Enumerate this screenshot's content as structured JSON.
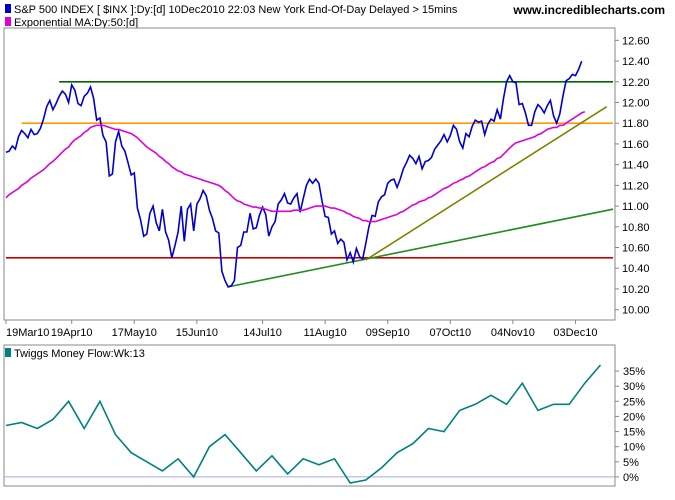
{
  "header": {
    "title": "S&P 500 INDEX [ $INX ]:Dy:[d]  10Dec2010 22:03 New York End-Of-Day Delayed > 15mins",
    "ma_label": "Exponential MA:Dy:50:[d]",
    "site": "www.incrediblecharts.com"
  },
  "colors": {
    "price": "#0000cc",
    "ma": "#dd00dd",
    "money_flow": "#008080",
    "red_line": "#cc0000",
    "orange_line": "#ff9900",
    "green_line": "#006600",
    "olive_line": "#808000",
    "trend_green": "#228b22",
    "zero_line": "#aaaadd"
  },
  "chart_data": [
    {
      "type": "line",
      "title": "S&P 500 INDEX [ $INX ]:Dy:[d]  10Dec2010 22:03 New York End-Of-Day Delayed > 15mins",
      "scale_factor_note": "",
      "x_tick_labels": [
        "19Mar10",
        "19Apr10",
        "17May10",
        "15Jun10",
        "14Jul10",
        "11Aug10",
        "09Sep10",
        "07Oct10",
        "04Nov10",
        "03Dec10"
      ],
      "x_tick_index": [
        0,
        21,
        41,
        61,
        82,
        102,
        122,
        142,
        162,
        182
      ],
      "y_tick_labels": [
        "10.00",
        "10.20",
        "10.40",
        "10.60",
        "10.80",
        "11.00",
        "11.20",
        "11.40",
        "11.60",
        "11.80",
        "12.00",
        "12.20",
        "12.40",
        "12.60"
      ],
      "ylim": [
        9.9,
        12.7
      ],
      "xlim": [
        0,
        194
      ],
      "grid": false,
      "series": [
        {
          "name": "S&P 500 INDEX [ $INX ]",
          "values": [
            11.52,
            11.53,
            11.58,
            11.55,
            11.67,
            11.73,
            11.7,
            11.66,
            11.74,
            11.69,
            11.7,
            11.75,
            11.84,
            11.96,
            12.02,
            11.93,
            11.99,
            12.06,
            12.11,
            12.08,
            12.0,
            12.17,
            12.12,
            11.99,
            11.97,
            12.06,
            12.09,
            12.15,
            12.04,
            11.83,
            11.85,
            11.68,
            11.62,
            11.29,
            11.31,
            11.62,
            11.72,
            11.58,
            11.53,
            11.42,
            11.3,
            11.32,
            10.98,
            10.87,
            10.71,
            10.73,
            10.93,
            11.0,
            10.84,
            10.76,
            10.97,
            10.75,
            10.67,
            10.5,
            10.62,
            10.75,
            11.0,
            10.66,
            10.97,
            11.02,
            10.76,
            11.02,
            11.07,
            11.15,
            11.1,
            10.96,
            10.88,
            10.76,
            10.74,
            10.37,
            10.28,
            10.22,
            10.23,
            10.28,
            10.6,
            10.62,
            10.75,
            10.75,
            10.93,
            10.78,
            10.79,
            10.91,
            10.99,
            10.92,
            10.71,
            10.8,
            10.85,
            11.02,
            11.06,
            11.12,
            11.03,
            11.02,
            11.08,
            11.12,
            10.94,
            11.07,
            11.2,
            11.26,
            11.22,
            11.26,
            11.22,
            11.05,
            10.9,
            10.89,
            10.73,
            10.76,
            10.64,
            10.68,
            10.65,
            10.48,
            10.55,
            10.46,
            10.59,
            10.51,
            10.49,
            10.64,
            10.8,
            10.91,
            10.9,
            11.04,
            11.09,
            11.11,
            11.22,
            11.25,
            11.26,
            11.18,
            11.26,
            11.36,
            11.42,
            11.49,
            11.46,
            11.41,
            11.48,
            11.36,
            11.43,
            11.44,
            11.47,
            11.55,
            11.59,
            11.63,
            11.69,
            11.62,
            11.68,
            11.78,
            11.74,
            11.62,
            11.56,
            11.7,
            11.67,
            11.77,
            11.83,
            11.81,
            11.82,
            11.69,
            11.79,
            11.84,
            11.82,
            11.93,
            11.84,
            12.04,
            12.2,
            12.26,
            12.2,
            12.19,
            11.98,
            11.99,
            11.9,
            11.78,
            11.78,
            11.91,
            11.98,
            11.95,
            11.9,
            11.97,
            12.02,
            11.87,
            11.8,
            11.89,
            12.06,
            12.21,
            12.23,
            12.27,
            12.26,
            12.32,
            12.4
          ]
        },
        {
          "name": "Exponential MA:Dy:50:[d]",
          "values": [
            11.08,
            11.11,
            11.13,
            11.15,
            11.17,
            11.2,
            11.22,
            11.24,
            11.27,
            11.29,
            11.31,
            11.33,
            11.35,
            11.38,
            11.41,
            11.43,
            11.46,
            11.49,
            11.52,
            11.55,
            11.57,
            11.61,
            11.64,
            11.66,
            11.68,
            11.71,
            11.73,
            11.76,
            11.77,
            11.78,
            11.78,
            11.78,
            11.77,
            11.76,
            11.75,
            11.74,
            11.74,
            11.73,
            11.72,
            11.71,
            11.7,
            11.68,
            11.66,
            11.63,
            11.6,
            11.57,
            11.55,
            11.53,
            11.51,
            11.48,
            11.46,
            11.43,
            11.41,
            11.38,
            11.36,
            11.34,
            11.33,
            11.31,
            11.3,
            11.29,
            11.28,
            11.27,
            11.26,
            11.25,
            11.24,
            11.23,
            11.22,
            11.21,
            11.2,
            11.18,
            11.15,
            11.13,
            11.1,
            11.07,
            11.05,
            11.04,
            11.02,
            11.01,
            11.0,
            10.99,
            10.99,
            10.98,
            10.98,
            10.97,
            10.96,
            10.95,
            10.95,
            10.95,
            10.95,
            10.95,
            10.95,
            10.95,
            10.96,
            10.96,
            10.96,
            10.96,
            10.97,
            10.98,
            10.99,
            11.0,
            11.0,
            11.0,
            11.0,
            10.99,
            10.98,
            10.98,
            10.97,
            10.96,
            10.95,
            10.93,
            10.92,
            10.9,
            10.89,
            10.88,
            10.86,
            10.86,
            10.85,
            10.85,
            10.85,
            10.86,
            10.87,
            10.88,
            10.89,
            10.9,
            10.91,
            10.92,
            10.94,
            10.95,
            10.97,
            10.99,
            11.01,
            11.02,
            11.04,
            11.05,
            11.06,
            11.08,
            11.09,
            11.11,
            11.13,
            11.15,
            11.17,
            11.18,
            11.2,
            11.22,
            11.23,
            11.25,
            11.26,
            11.28,
            11.29,
            11.31,
            11.33,
            11.35,
            11.37,
            11.38,
            11.4,
            11.42,
            11.43,
            11.46,
            11.47,
            11.5,
            11.53,
            11.56,
            11.59,
            11.61,
            11.62,
            11.63,
            11.64,
            11.65,
            11.66,
            11.67,
            11.69,
            11.7,
            11.72,
            11.74,
            11.75,
            11.76,
            11.76,
            11.78,
            11.78,
            11.8,
            11.82,
            11.84,
            11.86,
            11.88,
            11.9,
            11.91
          ]
        }
      ],
      "horizontal_lines": [
        {
          "y": 10.5,
          "color": "#cc0000",
          "x_from": 0,
          "x_to": 194
        },
        {
          "y": 11.8,
          "color": "#ff9900",
          "x_from": 5,
          "x_to": 194
        },
        {
          "y": 12.2,
          "color": "#006600",
          "x_from": 17,
          "x_to": 194
        }
      ],
      "trend_lines": [
        {
          "x1": 71,
          "y1": 10.22,
          "x2": 194,
          "y2": 10.97,
          "color": "#228b22"
        },
        {
          "x1": 115,
          "y1": 10.48,
          "x2": 192,
          "y2": 11.96,
          "color": "#808000"
        }
      ]
    },
    {
      "type": "line",
      "title": "Twiggs Money Flow:Wk:13",
      "y_tick_labels": [
        "0%",
        "5%",
        "10%",
        "15%",
        "20%",
        "25%",
        "30%",
        "35%"
      ],
      "ylim": [
        -3,
        38
      ],
      "xlim": [
        0,
        194
      ],
      "grid": false,
      "zero_line": 0,
      "series": [
        {
          "name": "Twiggs Money Flow:Wk:13",
          "x": [
            0,
            5,
            10,
            15,
            20,
            25,
            30,
            35,
            40,
            45,
            50,
            55,
            60,
            65,
            70,
            75,
            80,
            85,
            90,
            95,
            100,
            105,
            110,
            115,
            120,
            125,
            130,
            135,
            140,
            145,
            150,
            155,
            160,
            165,
            170,
            175,
            180,
            185,
            190
          ],
          "values": [
            17,
            18,
            16,
            19,
            25,
            16,
            25,
            14,
            8,
            5,
            2,
            6,
            0,
            10,
            14,
            8,
            2,
            7,
            1,
            6,
            4,
            6,
            -2,
            -1,
            3,
            8,
            11,
            16,
            15,
            22,
            24,
            27,
            24,
            31,
            22,
            24,
            24,
            31,
            37
          ]
        }
      ]
    }
  ]
}
